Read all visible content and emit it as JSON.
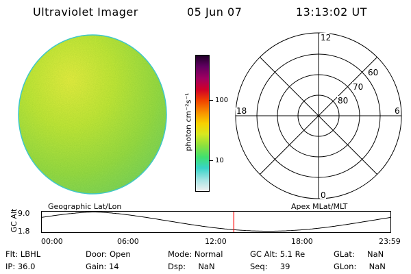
{
  "header": {
    "title": "Ultraviolet Imager",
    "date": "05 Jun 07",
    "time": "13:13:02 UT"
  },
  "colorbar": {
    "label": "photon cm⁻²s⁻¹",
    "ticks": [
      {
        "value": 100,
        "label": "100"
      },
      {
        "value": 10,
        "label": "10"
      }
    ],
    "scale": "log",
    "colors": [
      "#f0f0f0",
      "#a8e4e4",
      "#38d4c8",
      "#40e070",
      "#88e040",
      "#d8e820",
      "#f8d000",
      "#f89000",
      "#f04000",
      "#d00028",
      "#a00060",
      "#600060",
      "#200028"
    ]
  },
  "polar_plot": {
    "mlt_labels": {
      "top": "12",
      "bottom": "0",
      "left": "18",
      "right": "6"
    },
    "lat_labels": [
      "80",
      "70",
      "60"
    ]
  },
  "bottom_plot": {
    "left_title": "Geographic Lat/Lon",
    "right_title": "Apex MLat/MLT",
    "ylabel": "GC Alt",
    "y_ticks": [
      "9.0",
      "1.8"
    ],
    "x_ticks": [
      "00:00",
      "06:00",
      "12:00",
      "18:00",
      "23:59"
    ],
    "current_time_hours": 13.22,
    "marker_color": "#ff0000"
  },
  "info": {
    "flt": {
      "label": "Flt:",
      "value": "LBHL"
    },
    "ip": {
      "label": "IP:",
      "value": "36.0"
    },
    "door": {
      "label": "Door:",
      "value": "Open"
    },
    "gain": {
      "label": "Gain:",
      "value": "14"
    },
    "mode": {
      "label": "Mode:",
      "value": "Normal"
    },
    "dsp": {
      "label": "Dsp:",
      "value": "NaN"
    },
    "gcalt": {
      "label": "GC Alt:",
      "value": "5.1 Re"
    },
    "seq": {
      "label": "Seq:",
      "value": "39"
    },
    "glat": {
      "label": "GLat:",
      "value": "NaN"
    },
    "glon": {
      "label": "GLon:",
      "value": "NaN"
    }
  }
}
